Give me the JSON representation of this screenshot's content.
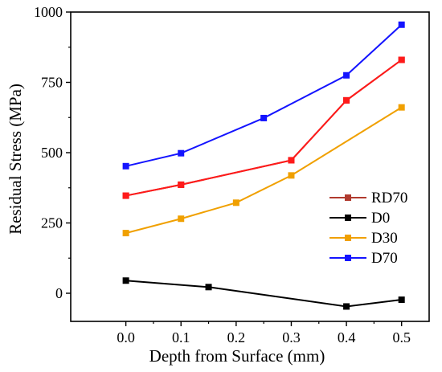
{
  "chart_data": {
    "type": "line",
    "xlabel": "Depth from Surface (mm)",
    "ylabel": "Residual Stress (MPa)",
    "xlim": [
      -0.1,
      0.55
    ],
    "ylim": [
      -100,
      1000
    ],
    "xticks": [
      0.0,
      0.1,
      0.2,
      0.3,
      0.4,
      0.5
    ],
    "xtick_labels": [
      "0.0",
      "0.1",
      "0.2",
      "0.3",
      "0.4",
      "0.5"
    ],
    "yticks": [
      0,
      250,
      500,
      750,
      1000
    ],
    "ytick_labels": [
      "0",
      "250",
      "500",
      "750",
      "1000"
    ],
    "grid": false,
    "legend_position": "lower-right",
    "series": [
      {
        "name": "RD70",
        "color": "#b03a2e",
        "points": [
          [
            0.0,
            347
          ],
          [
            0.1,
            386
          ],
          [
            0.3,
            473
          ],
          [
            0.4,
            686
          ],
          [
            0.5,
            830
          ]
        ]
      },
      {
        "name": "D0",
        "color": "#000000",
        "points": [
          [
            0.0,
            45
          ],
          [
            0.15,
            22
          ],
          [
            0.4,
            -47
          ],
          [
            0.5,
            -23
          ]
        ]
      },
      {
        "name": "D30",
        "color": "#f0a000",
        "points": [
          [
            0.0,
            214
          ],
          [
            0.1,
            265
          ],
          [
            0.2,
            322
          ],
          [
            0.3,
            419
          ],
          [
            0.5,
            661
          ]
        ]
      },
      {
        "name": "D70",
        "color": "#1414ff",
        "points": [
          [
            0.0,
            452
          ],
          [
            0.1,
            498
          ],
          [
            0.25,
            623
          ],
          [
            0.4,
            775
          ],
          [
            0.5,
            955
          ]
        ]
      }
    ],
    "extra_series": [
      {
        "note_color": "#ff0000",
        "color": "#ff1a1a",
        "points": [
          [
            0.0,
            347
          ],
          [
            0.1,
            386
          ],
          [
            0.3,
            473
          ],
          [
            0.4,
            686
          ],
          [
            0.5,
            830
          ]
        ]
      }
    ]
  }
}
